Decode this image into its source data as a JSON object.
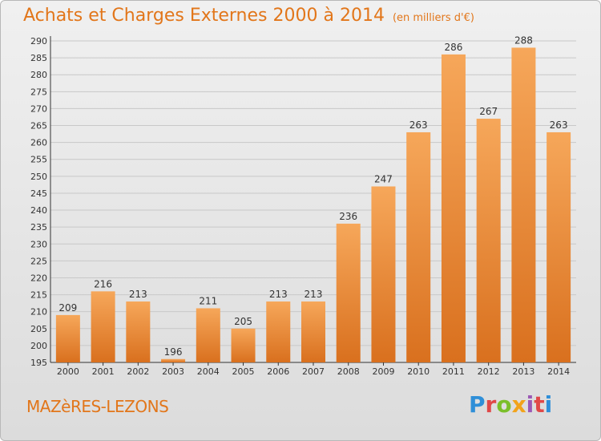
{
  "header": {
    "title": "Achats et Charges Externes 2000 à 2014",
    "unit": "(en milliers d'€)"
  },
  "footer": {
    "municipality": "MAZèRES-LEZONS",
    "logo_text": "Proxiti",
    "logo_colors": [
      "#2f8fd8",
      "#e04848",
      "#7bbf2a",
      "#f2a31b",
      "#9b59b6",
      "#e04848",
      "#2f8fd8"
    ]
  },
  "colors": {
    "bar_light": "#f6a75a",
    "bar_dark": "#d9701e",
    "accent": "#e2761a",
    "grid": "#c8c8c8",
    "axis": "#333333"
  },
  "chart_data": {
    "type": "bar",
    "categories": [
      "2000",
      "2001",
      "2002",
      "2003",
      "2004",
      "2005",
      "2006",
      "2007",
      "2008",
      "2009",
      "2010",
      "2011",
      "2012",
      "2013",
      "2014"
    ],
    "values": [
      209,
      216,
      213,
      196,
      211,
      205,
      213,
      213,
      236,
      247,
      263,
      286,
      267,
      288,
      263
    ],
    "ylim": [
      195,
      290
    ],
    "yticks": [
      195,
      200,
      205,
      210,
      215,
      220,
      225,
      230,
      235,
      240,
      245,
      250,
      255,
      260,
      265,
      270,
      275,
      280,
      285,
      290
    ],
    "grid": true,
    "legend": "none",
    "data_labels": true
  }
}
